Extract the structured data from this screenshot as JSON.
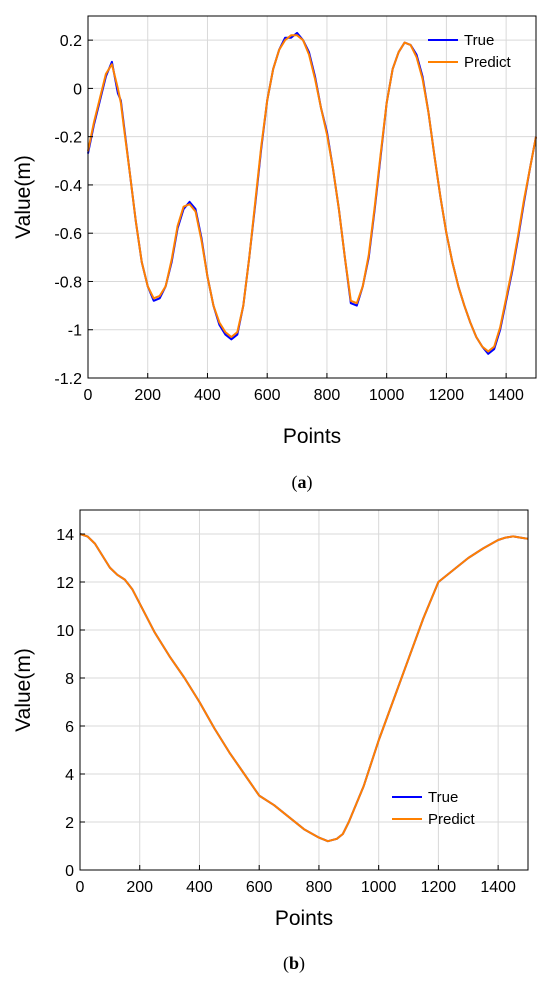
{
  "chart_data": [
    {
      "type": "line",
      "caption_letter": "a",
      "xlabel": "Points",
      "ylabel": "Value(m)",
      "xlim": [
        0,
        1500
      ],
      "ylim": [
        -1.2,
        0.3
      ],
      "xticks": [
        0,
        200,
        400,
        600,
        800,
        1000,
        1200,
        1400
      ],
      "xtick_labels": [
        "0",
        "200",
        "400",
        "600",
        "800",
        "1000",
        "1200",
        "1400"
      ],
      "yticks": [
        -1.2,
        -1.0,
        -0.8,
        -0.6,
        -0.4,
        -0.2,
        0,
        0.2
      ],
      "ytick_labels": [
        "-1.2",
        "-1",
        "-0.8",
        "-0.6",
        "-0.4",
        "-0.2",
        "0",
        "0.2"
      ],
      "grid": true,
      "legend_position": "top-right",
      "series": [
        {
          "name": "True",
          "color": "#0000ff",
          "x": [
            0,
            20,
            40,
            60,
            80,
            100,
            110,
            120,
            140,
            160,
            180,
            200,
            220,
            240,
            260,
            280,
            300,
            320,
            340,
            360,
            380,
            400,
            420,
            440,
            460,
            480,
            500,
            520,
            540,
            560,
            580,
            600,
            620,
            640,
            660,
            680,
            700,
            720,
            740,
            760,
            780,
            800,
            820,
            840,
            860,
            880,
            900,
            920,
            940,
            960,
            980,
            1000,
            1020,
            1040,
            1060,
            1080,
            1100,
            1120,
            1140,
            1160,
            1180,
            1200,
            1220,
            1240,
            1260,
            1280,
            1300,
            1320,
            1340,
            1360,
            1380,
            1400,
            1420,
            1440,
            1460,
            1480,
            1500
          ],
          "y": [
            -0.27,
            -0.15,
            -0.05,
            0.05,
            0.11,
            -0.02,
            -0.05,
            -0.15,
            -0.35,
            -0.55,
            -0.72,
            -0.82,
            -0.88,
            -0.87,
            -0.82,
            -0.72,
            -0.58,
            -0.5,
            -0.47,
            -0.5,
            -0.62,
            -0.78,
            -0.9,
            -0.98,
            -1.02,
            -1.04,
            -1.02,
            -0.9,
            -0.7,
            -0.48,
            -0.25,
            -0.05,
            0.08,
            0.16,
            0.21,
            0.21,
            0.23,
            0.2,
            0.15,
            0.05,
            -0.08,
            -0.18,
            -0.33,
            -0.5,
            -0.7,
            -0.89,
            -0.9,
            -0.82,
            -0.7,
            -0.5,
            -0.28,
            -0.06,
            0.08,
            0.15,
            0.19,
            0.18,
            0.14,
            0.05,
            -0.1,
            -0.28,
            -0.45,
            -0.6,
            -0.72,
            -0.82,
            -0.9,
            -0.97,
            -1.03,
            -1.07,
            -1.1,
            -1.08,
            -1.0,
            -0.88,
            -0.76,
            -0.62,
            -0.47,
            -0.33,
            -0.2
          ]
        },
        {
          "name": "Predict",
          "color": "#ff8000",
          "x": [
            0,
            20,
            40,
            60,
            80,
            100,
            110,
            120,
            140,
            160,
            180,
            200,
            220,
            240,
            260,
            280,
            300,
            320,
            340,
            360,
            380,
            400,
            420,
            440,
            460,
            480,
            500,
            520,
            540,
            560,
            580,
            600,
            620,
            640,
            660,
            680,
            700,
            720,
            740,
            760,
            780,
            800,
            820,
            840,
            860,
            880,
            900,
            920,
            940,
            960,
            980,
            1000,
            1020,
            1040,
            1060,
            1080,
            1100,
            1120,
            1140,
            1160,
            1180,
            1200,
            1220,
            1240,
            1260,
            1280,
            1300,
            1320,
            1340,
            1360,
            1380,
            1400,
            1420,
            1440,
            1460,
            1480,
            1500
          ],
          "y": [
            -0.26,
            -0.14,
            -0.04,
            0.06,
            0.1,
            0.0,
            -0.06,
            -0.16,
            -0.35,
            -0.55,
            -0.72,
            -0.82,
            -0.87,
            -0.86,
            -0.82,
            -0.71,
            -0.57,
            -0.49,
            -0.48,
            -0.51,
            -0.63,
            -0.78,
            -0.9,
            -0.97,
            -1.01,
            -1.03,
            -1.01,
            -0.9,
            -0.7,
            -0.47,
            -0.24,
            -0.05,
            0.08,
            0.16,
            0.2,
            0.22,
            0.22,
            0.2,
            0.14,
            0.04,
            -0.08,
            -0.19,
            -0.33,
            -0.5,
            -0.7,
            -0.88,
            -0.89,
            -0.82,
            -0.69,
            -0.49,
            -0.27,
            -0.06,
            0.08,
            0.15,
            0.19,
            0.18,
            0.13,
            0.04,
            -0.1,
            -0.28,
            -0.45,
            -0.6,
            -0.72,
            -0.82,
            -0.9,
            -0.97,
            -1.03,
            -1.07,
            -1.09,
            -1.07,
            -0.99,
            -0.87,
            -0.75,
            -0.61,
            -0.46,
            -0.33,
            -0.2
          ]
        }
      ]
    },
    {
      "type": "line",
      "caption_letter": "b",
      "xlabel": "Points",
      "ylabel": "Value(m)",
      "xlim": [
        0,
        1500
      ],
      "ylim": [
        0,
        15
      ],
      "xticks": [
        0,
        200,
        400,
        600,
        800,
        1000,
        1200,
        1400
      ],
      "xtick_labels": [
        "0",
        "200",
        "400",
        "600",
        "800",
        "1000",
        "1200",
        "1400"
      ],
      "yticks": [
        0,
        2,
        4,
        6,
        8,
        10,
        12,
        14
      ],
      "ytick_labels": [
        "0",
        "2",
        "4",
        "6",
        "8",
        "10",
        "12",
        "14"
      ],
      "grid": true,
      "legend_position": "bottom-right",
      "series": [
        {
          "name": "True",
          "color": "#0000ff",
          "x": [
            0,
            25,
            50,
            75,
            100,
            125,
            150,
            175,
            200,
            250,
            300,
            350,
            400,
            450,
            500,
            550,
            600,
            650,
            700,
            750,
            800,
            830,
            860,
            880,
            900,
            950,
            1000,
            1050,
            1100,
            1150,
            1200,
            1250,
            1300,
            1350,
            1400,
            1425,
            1450,
            1475,
            1500
          ],
          "y": [
            14.0,
            13.9,
            13.6,
            13.1,
            12.6,
            12.3,
            12.1,
            11.7,
            11.1,
            9.9,
            8.9,
            8.0,
            7.0,
            5.9,
            4.9,
            4.0,
            3.1,
            2.7,
            2.2,
            1.7,
            1.35,
            1.2,
            1.3,
            1.5,
            2.0,
            3.5,
            5.4,
            7.1,
            8.8,
            10.5,
            12.0,
            12.5,
            13.0,
            13.4,
            13.75,
            13.85,
            13.9,
            13.85,
            13.8
          ]
        },
        {
          "name": "Predict",
          "color": "#ff8000",
          "x": [
            0,
            25,
            50,
            75,
            100,
            125,
            150,
            175,
            200,
            250,
            300,
            350,
            400,
            450,
            500,
            550,
            600,
            650,
            700,
            750,
            800,
            830,
            860,
            880,
            900,
            950,
            1000,
            1050,
            1100,
            1150,
            1200,
            1250,
            1300,
            1350,
            1400,
            1425,
            1450,
            1475,
            1500
          ],
          "y": [
            14.0,
            13.9,
            13.6,
            13.1,
            12.6,
            12.3,
            12.1,
            11.7,
            11.1,
            9.9,
            8.9,
            8.0,
            7.0,
            5.9,
            4.9,
            4.0,
            3.1,
            2.7,
            2.2,
            1.7,
            1.35,
            1.2,
            1.3,
            1.5,
            2.0,
            3.5,
            5.4,
            7.1,
            8.8,
            10.5,
            12.0,
            12.5,
            13.0,
            13.4,
            13.75,
            13.85,
            13.9,
            13.85,
            13.8
          ]
        }
      ]
    }
  ]
}
